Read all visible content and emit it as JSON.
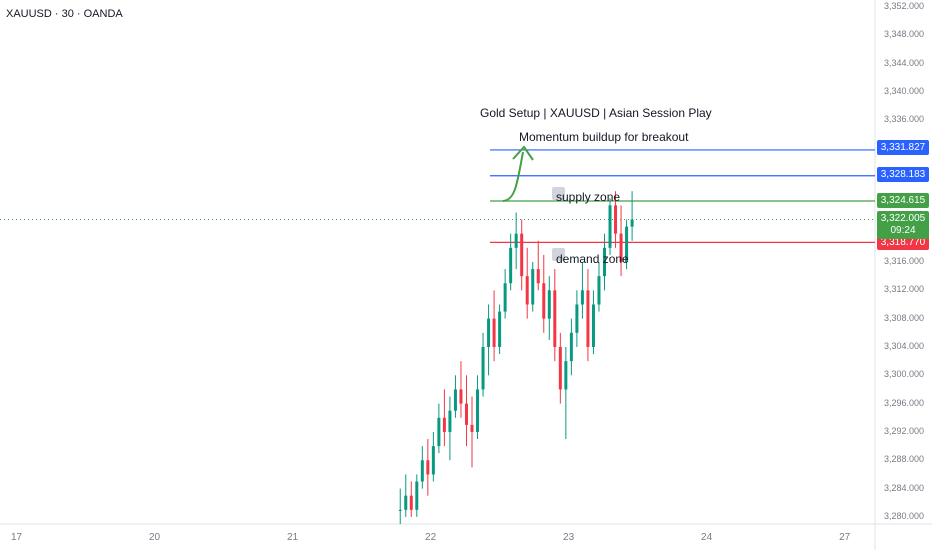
{
  "symbol_title": "XAUUSD · 30 · OANDA",
  "annotations": {
    "title": "Gold Setup | XAUUSD | Asian Session Play",
    "subtitle": "Momentum buildup for breakout",
    "supply": "supply zone",
    "demand": "demand zone"
  },
  "price_levels": [
    {
      "price": 3331.827,
      "label": "3,331.827",
      "color": "#2962ff"
    },
    {
      "price": 3328.183,
      "label": "3,328.183",
      "color": "#2962ff"
    },
    {
      "price": 3324.615,
      "label": "3,324.615",
      "color": "#43a047"
    },
    {
      "price": 3318.77,
      "label": "3,318.770",
      "color": "#f23645"
    }
  ],
  "current_price": {
    "price": 3322.005,
    "label": "3,322.005",
    "countdown": "09:24",
    "color": "#43a047"
  },
  "colors": {
    "up": "#089981",
    "down": "#f23645",
    "arrow": "#43a047"
  },
  "chart_data": {
    "type": "candlestick",
    "symbol": "XAUUSD",
    "interval": "30",
    "source": "OANDA",
    "y_ticks": [
      3352,
      3348,
      3344,
      3340,
      3336,
      3332,
      3328,
      3324,
      3320,
      3316,
      3312,
      3308,
      3304,
      3300,
      3296,
      3292,
      3288,
      3284,
      3280
    ],
    "y_tick_labels": [
      "3,352.000",
      "3,348.000",
      "3,344.000",
      "3,340.000",
      "3,336.000",
      "3,332.000",
      "3,328.000",
      "3,324.000",
      "3,320.000",
      "3,316.000",
      "3,312.000",
      "3,308.000",
      "3,304.000",
      "3,300.000",
      "3,296.000",
      "3,292.000",
      "3,288.000",
      "3,284.000",
      "3,280.000"
    ],
    "ylim": [
      3279,
      3353
    ],
    "x_ticks": [
      17,
      20,
      21,
      22,
      23,
      24,
      27
    ],
    "x_tick_labels": [
      "17",
      "20",
      "21",
      "22",
      "23",
      "24",
      "27"
    ],
    "x_tick_positions_days": [
      0,
      1,
      2,
      3,
      4,
      5,
      6
    ],
    "xlim_days": [
      -0.12,
      6.22
    ],
    "candles": [
      [
        2.78,
        3281,
        3284,
        3279,
        3281
      ],
      [
        2.82,
        3281,
        3286,
        3280,
        3283
      ],
      [
        2.86,
        3283,
        3285,
        3280,
        3281
      ],
      [
        2.9,
        3281,
        3286,
        3280,
        3285
      ],
      [
        2.94,
        3285,
        3290,
        3284,
        3288
      ],
      [
        2.98,
        3288,
        3291,
        3283,
        3286
      ],
      [
        3.02,
        3286,
        3292,
        3285,
        3290
      ],
      [
        3.06,
        3290,
        3296,
        3289,
        3294
      ],
      [
        3.1,
        3294,
        3298,
        3290,
        3292
      ],
      [
        3.14,
        3292,
        3297,
        3288,
        3295
      ],
      [
        3.18,
        3295,
        3300,
        3294,
        3298
      ],
      [
        3.22,
        3298,
        3302,
        3294,
        3296
      ],
      [
        3.26,
        3296,
        3300,
        3290,
        3293
      ],
      [
        3.3,
        3293,
        3297,
        3287,
        3292
      ],
      [
        3.34,
        3292,
        3300,
        3291,
        3298
      ],
      [
        3.38,
        3298,
        3306,
        3297,
        3304
      ],
      [
        3.42,
        3304,
        3310,
        3300,
        3308
      ],
      [
        3.46,
        3308,
        3312,
        3302,
        3304
      ],
      [
        3.5,
        3304,
        3310,
        3303,
        3309
      ],
      [
        3.54,
        3309,
        3315,
        3308,
        3313
      ],
      [
        3.58,
        3313,
        3320,
        3312,
        3318
      ],
      [
        3.62,
        3318,
        3323,
        3315,
        3320
      ],
      [
        3.66,
        3320,
        3322,
        3312,
        3314
      ],
      [
        3.7,
        3314,
        3318,
        3308,
        3310
      ],
      [
        3.74,
        3310,
        3316,
        3309,
        3315
      ],
      [
        3.78,
        3315,
        3319,
        3312,
        3313
      ],
      [
        3.82,
        3313,
        3317,
        3306,
        3308
      ],
      [
        3.86,
        3308,
        3314,
        3305,
        3312
      ],
      [
        3.9,
        3312,
        3315,
        3302,
        3304
      ],
      [
        3.94,
        3304,
        3306,
        3296,
        3298
      ],
      [
        3.98,
        3298,
        3304,
        3291,
        3302
      ],
      [
        4.02,
        3302,
        3308,
        3300,
        3306
      ],
      [
        4.06,
        3306,
        3312,
        3304,
        3310
      ],
      [
        4.1,
        3310,
        3316,
        3308,
        3312
      ],
      [
        4.14,
        3312,
        3315,
        3302,
        3304
      ],
      [
        4.18,
        3304,
        3312,
        3303,
        3310
      ],
      [
        4.22,
        3310,
        3316,
        3309,
        3314
      ],
      [
        4.26,
        3314,
        3320,
        3312,
        3318
      ],
      [
        4.3,
        3318,
        3325,
        3317,
        3324
      ],
      [
        4.34,
        3324,
        3326,
        3318,
        3320
      ],
      [
        4.38,
        3320,
        3324,
        3314,
        3316
      ],
      [
        4.42,
        3316,
        3322,
        3315,
        3321
      ],
      [
        4.46,
        3321,
        3326,
        3319,
        3322
      ]
    ]
  }
}
